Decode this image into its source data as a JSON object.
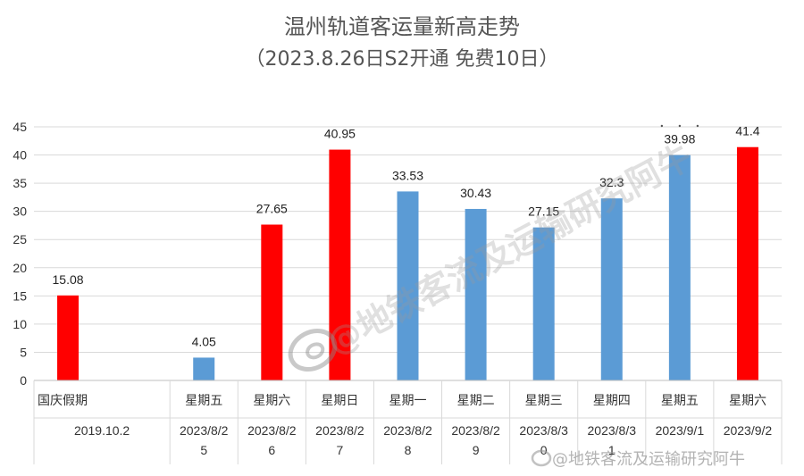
{
  "chart_data": {
    "type": "bar",
    "title": "温州轨道客运量新高走势",
    "subtitle": "（2023.8.26日S2开通  免费10日）",
    "ylim": [
      0,
      45
    ],
    "yticks": [
      0,
      5,
      10,
      15,
      20,
      25,
      30,
      35,
      40,
      45
    ],
    "grid": true,
    "highlight_color": "#ff0000",
    "normal_color": "#5b9bd5",
    "categories": [
      {
        "day": "国庆假期",
        "date": "2019.10.2"
      },
      {
        "day": "",
        "date": ""
      },
      {
        "day": "星期五",
        "date": "2023/8/25"
      },
      {
        "day": "星期六",
        "date": "2023/8/26"
      },
      {
        "day": "星期日",
        "date": "2023/8/27"
      },
      {
        "day": "星期一",
        "date": "2023/8/28"
      },
      {
        "day": "星期二",
        "date": "2023/8/29"
      },
      {
        "day": "星期三",
        "date": "2023/8/30"
      },
      {
        "day": "星期四",
        "date": "2023/8/31"
      },
      {
        "day": "星期五",
        "date": "2023/9/1"
      },
      {
        "day": "星期六",
        "date": "2023/9/2"
      }
    ],
    "values": [
      15.08,
      null,
      4.05,
      27.65,
      40.95,
      33.53,
      30.43,
      27.15,
      32.3,
      39.98,
      41.4
    ],
    "labels": [
      "15.08",
      "",
      "4.05",
      "27.65",
      "40.95",
      "33.53",
      "30.43",
      "27.15",
      "32.3",
      "39.98",
      "41.4"
    ],
    "highlighted": [
      true,
      false,
      false,
      true,
      true,
      false,
      false,
      false,
      false,
      false,
      true
    ]
  },
  "watermark": {
    "center": "@地铁客流及运输研究阿牛",
    "bottom": "@地铁客流及运输研究阿牛"
  }
}
